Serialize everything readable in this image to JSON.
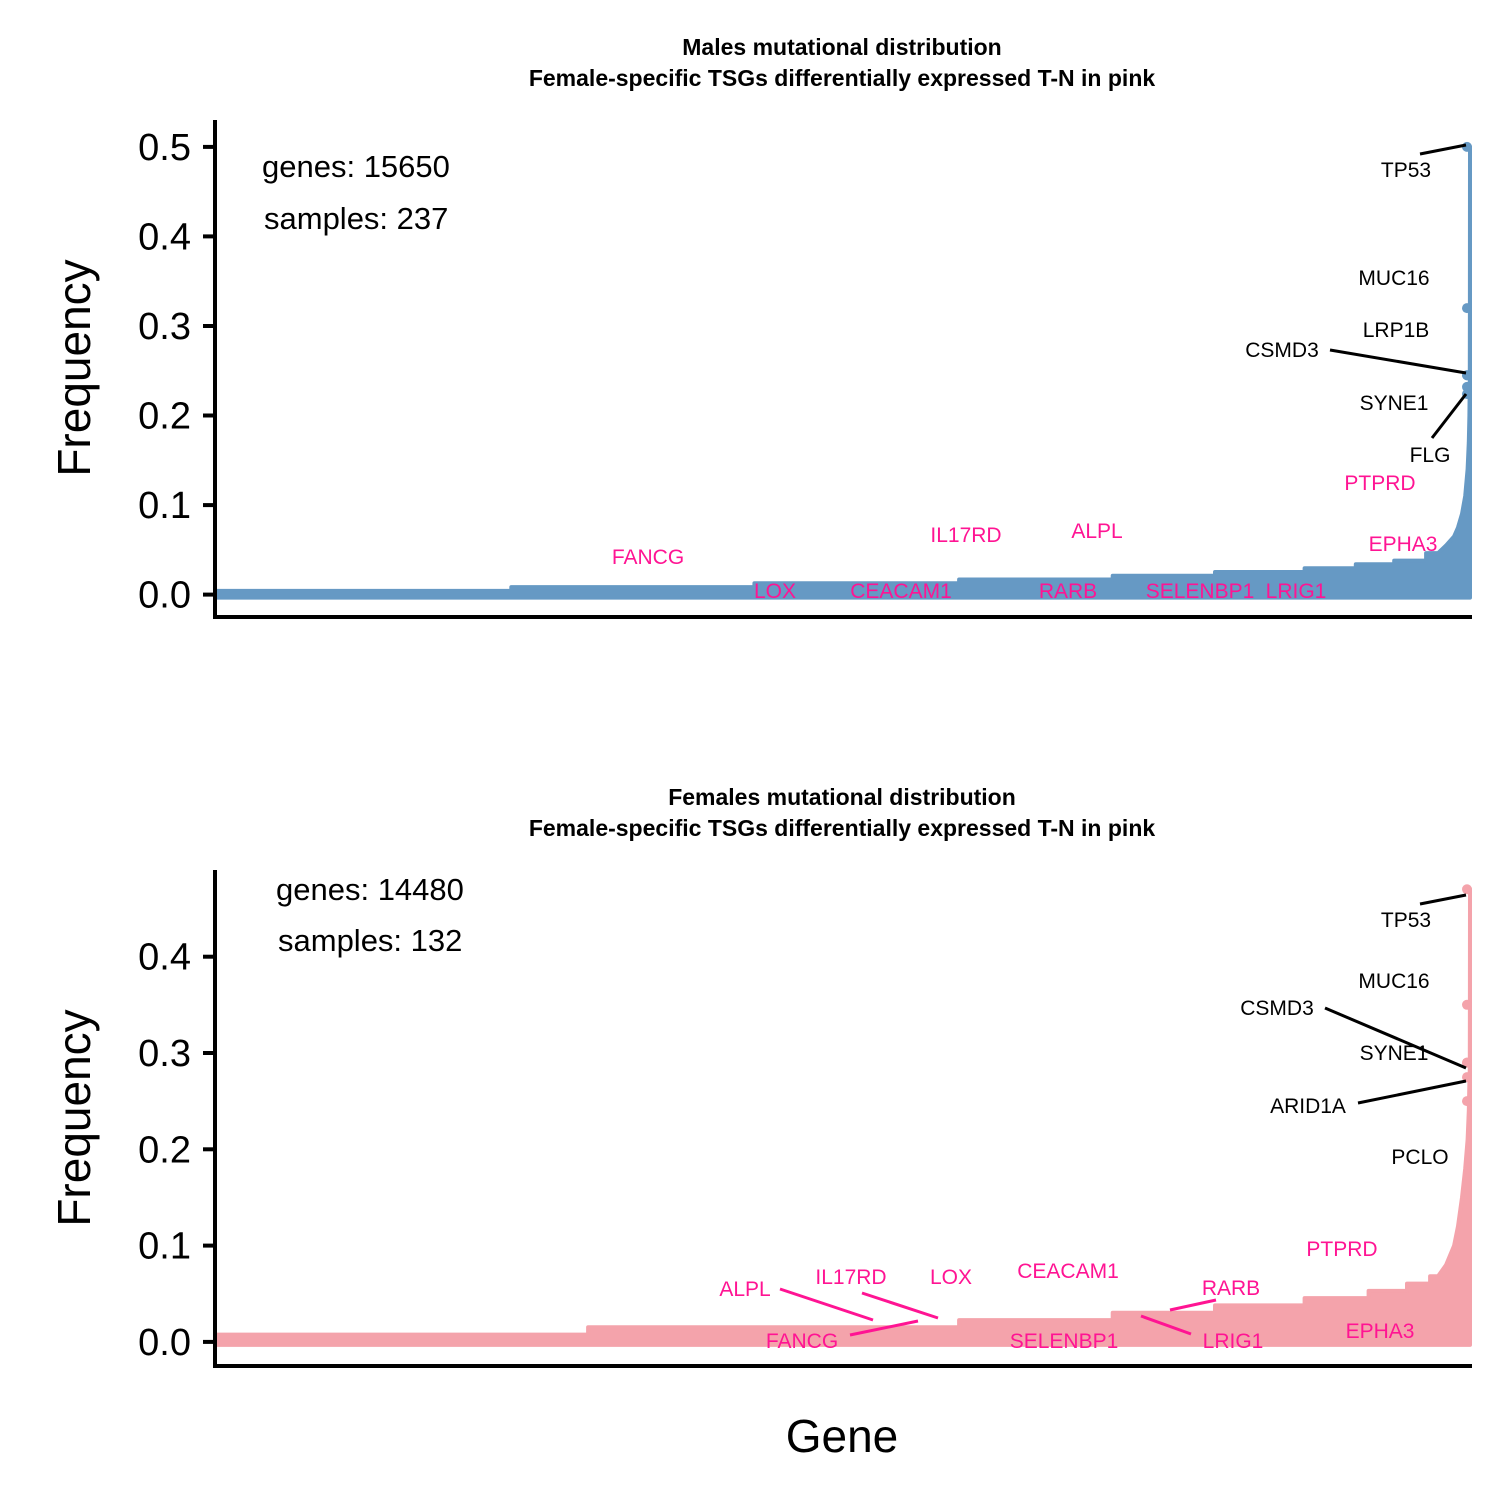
{
  "colors": {
    "male_fill": "#6699c4",
    "female_fill": "#f4a3ab",
    "highlight": "#ff1493",
    "text": "#000000"
  },
  "x_title": "Gene",
  "chart_data": [
    {
      "type": "area",
      "title_line1": "Males mutational distribution",
      "title_line2": "Female-specific TSGs differentially expressed T-N in pink",
      "ylabel": "Frequency",
      "ylim": [
        -0.025,
        0.53
      ],
      "yticks": [
        0.0,
        0.1,
        0.2,
        0.3,
        0.4,
        0.5
      ],
      "ytick_labels": [
        "0.0",
        "0.1",
        "0.2",
        "0.3",
        "0.4",
        "0.5"
      ],
      "grid": false,
      "n_genes": 15650,
      "genes_label": "genes:  15650",
      "samples_label": "samples:  237",
      "distribution": [
        [
          0,
          0.0042
        ],
        [
          0.23,
          0.0042
        ],
        [
          0.23,
          0.0084
        ],
        [
          0.42,
          0.0084
        ],
        [
          0.42,
          0.0127
        ],
        [
          0.58,
          0.0127
        ],
        [
          0.58,
          0.0169
        ],
        [
          0.7,
          0.0169
        ],
        [
          0.7,
          0.0211
        ],
        [
          0.78,
          0.0211
        ],
        [
          0.78,
          0.0253
        ],
        [
          0.85,
          0.0253
        ],
        [
          0.85,
          0.0295
        ],
        [
          0.89,
          0.0295
        ],
        [
          0.89,
          0.0338
        ],
        [
          0.92,
          0.0338
        ],
        [
          0.92,
          0.038
        ],
        [
          0.945,
          0.038
        ],
        [
          0.945,
          0.0464
        ],
        [
          0.96,
          0.0464
        ],
        [
          0.97,
          0.055
        ],
        [
          0.98,
          0.065
        ],
        [
          0.985,
          0.075
        ],
        [
          0.99,
          0.09
        ],
        [
          0.994,
          0.11
        ],
        [
          0.997,
          0.14
        ],
        [
          0.9985,
          0.17
        ],
        [
          0.9992,
          0.2
        ],
        [
          0.9996,
          0.23
        ],
        [
          0.9998,
          0.25
        ],
        [
          0.99993,
          0.32
        ],
        [
          1.0,
          0.5
        ]
      ],
      "genes": [
        {
          "name": "TP53",
          "x": 1.0,
          "y": 0.5,
          "highlight": false
        },
        {
          "name": "MUC16",
          "x": 0.99995,
          "y": 0.32,
          "highlight": false
        },
        {
          "name": "LRP1B",
          "x": 0.9999,
          "y": 0.245,
          "highlight": false
        },
        {
          "name": "CSMD3",
          "x": 0.99988,
          "y": 0.245,
          "highlight": false
        },
        {
          "name": "SYNE1",
          "x": 0.9998,
          "y": 0.232,
          "highlight": false
        },
        {
          "name": "FLG",
          "x": 0.99975,
          "y": 0.224,
          "highlight": false
        },
        {
          "name": "PTPRD",
          "x": 0.9935,
          "y": 0.08,
          "highlight": true
        },
        {
          "name": "EPHA3",
          "x": 0.96,
          "y": 0.046,
          "highlight": true
        },
        {
          "name": "FANCG",
          "x": 0.35,
          "y": 0.0084,
          "highlight": true
        },
        {
          "name": "IL17RD",
          "x": 0.6,
          "y": 0.0169,
          "highlight": true
        },
        {
          "name": "ALPL",
          "x": 0.7,
          "y": 0.0211,
          "highlight": true
        },
        {
          "name": "LOX",
          "x": 0.44,
          "y": 0.0127,
          "highlight": true
        },
        {
          "name": "CEACAM1",
          "x": 0.54,
          "y": 0.0127,
          "highlight": true
        },
        {
          "name": "RARB",
          "x": 0.72,
          "y": 0.0211,
          "highlight": true
        },
        {
          "name": "SELENBP1",
          "x": 0.85,
          "y": 0.0253,
          "highlight": true
        },
        {
          "name": "LRIG1",
          "x": 0.9,
          "y": 0.0295,
          "highlight": true
        }
      ]
    },
    {
      "type": "area",
      "title_line1": "Females mutational distribution",
      "title_line2": "Female-specific TSGs differentially expressed T-N in pink",
      "ylabel": "Frequency",
      "ylim": [
        -0.025,
        0.49
      ],
      "yticks": [
        0.0,
        0.1,
        0.2,
        0.3,
        0.4
      ],
      "ytick_labels": [
        "0.0",
        "0.1",
        "0.2",
        "0.3",
        "0.4"
      ],
      "grid": false,
      "n_genes": 14480,
      "genes_label": "genes:  14480",
      "samples_label": "samples:  132",
      "distribution": [
        [
          0,
          0.0076
        ],
        [
          0.29,
          0.0076
        ],
        [
          0.29,
          0.0152
        ],
        [
          0.58,
          0.0152
        ],
        [
          0.58,
          0.0227
        ],
        [
          0.7,
          0.0227
        ],
        [
          0.7,
          0.0303
        ],
        [
          0.78,
          0.0303
        ],
        [
          0.78,
          0.0379
        ],
        [
          0.85,
          0.0379
        ],
        [
          0.85,
          0.0455
        ],
        [
          0.9,
          0.0455
        ],
        [
          0.9,
          0.053
        ],
        [
          0.93,
          0.053
        ],
        [
          0.93,
          0.0606
        ],
        [
          0.95,
          0.0606
        ],
        [
          0.95,
          0.0682
        ],
        [
          0.96,
          0.0682
        ],
        [
          0.97,
          0.08
        ],
        [
          0.98,
          0.1
        ],
        [
          0.985,
          0.12
        ],
        [
          0.99,
          0.15
        ],
        [
          0.994,
          0.18
        ],
        [
          0.997,
          0.21
        ],
        [
          0.9985,
          0.24
        ],
        [
          0.9992,
          0.27
        ],
        [
          0.9996,
          0.28
        ],
        [
          0.9998,
          0.29
        ],
        [
          0.99993,
          0.35
        ],
        [
          1.0,
          0.47
        ]
      ],
      "genes": [
        {
          "name": "TP53",
          "x": 1.0,
          "y": 0.47,
          "highlight": false
        },
        {
          "name": "MUC16",
          "x": 0.99995,
          "y": 0.35,
          "highlight": false
        },
        {
          "name": "CSMD3",
          "x": 0.9999,
          "y": 0.29,
          "highlight": false
        },
        {
          "name": "SYNE1",
          "x": 0.99985,
          "y": 0.29,
          "highlight": false
        },
        {
          "name": "ARID1A",
          "x": 0.9998,
          "y": 0.275,
          "highlight": false
        },
        {
          "name": "PCLO",
          "x": 0.9994,
          "y": 0.25,
          "highlight": false
        },
        {
          "name": "PTPRD",
          "x": 0.985,
          "y": 0.12,
          "highlight": true
        },
        {
          "name": "EPHA3",
          "x": 0.93,
          "y": 0.0606,
          "highlight": true
        },
        {
          "name": "ALPL",
          "x": 0.52,
          "y": 0.0227,
          "highlight": true
        },
        {
          "name": "IL17RD",
          "x": 0.56,
          "y": 0.0227,
          "highlight": true
        },
        {
          "name": "LOX",
          "x": 0.58,
          "y": 0.0227,
          "highlight": true
        },
        {
          "name": "FANCG",
          "x": 0.56,
          "y": 0.0152,
          "highlight": true
        },
        {
          "name": "CEACAM1",
          "x": 0.7,
          "y": 0.0303,
          "highlight": true
        },
        {
          "name": "SELENBP1",
          "x": 0.72,
          "y": 0.0303,
          "highlight": true
        },
        {
          "name": "RARB",
          "x": 0.76,
          "y": 0.0379,
          "highlight": true
        },
        {
          "name": "LRIG1",
          "x": 0.76,
          "y": 0.0379,
          "highlight": true
        }
      ]
    }
  ]
}
